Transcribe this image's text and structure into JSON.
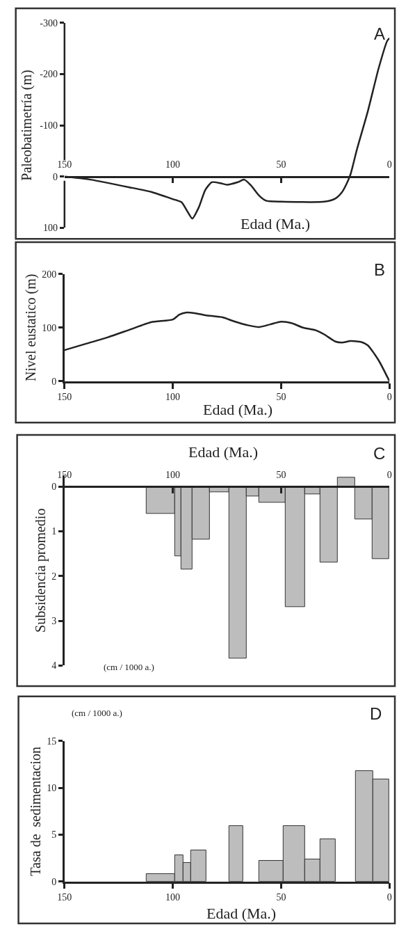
{
  "chart_data": [
    {
      "type": "line",
      "ylabel": "Paleobatimetría (m)",
      "xlabel": "Edad (Ma.)",
      "annotations": [
        "A"
      ],
      "xlim": [
        150,
        0
      ],
      "xticks": [
        150,
        100,
        50,
        0
      ],
      "ylim": [
        100,
        -300
      ],
      "yticks": [
        -300,
        -200,
        -100,
        0,
        100
      ],
      "series": [
        {
          "color": "#222222",
          "x": [
            150,
            143,
            138,
            120,
            110,
            100,
            96,
            93,
            91,
            88,
            85,
            82,
            78,
            75,
            70,
            67,
            64,
            60,
            57,
            50,
            30,
            25,
            22,
            20,
            18,
            15,
            10,
            5,
            1,
            0
          ],
          "values": [
            0,
            3,
            6,
            21,
            30,
            44,
            50,
            70,
            82,
            60,
            26,
            11,
            13,
            16,
            11,
            6,
            17,
            38,
            47,
            49,
            49,
            43,
            31,
            16,
            -4,
            -53,
            -127,
            -211,
            -265,
            -270
          ]
        }
      ]
    },
    {
      "type": "line",
      "ylabel": "Nivel eustatico (m)",
      "xlabel": "Edad (Ma.)",
      "annotations": [
        "B"
      ],
      "xlim": [
        150,
        0
      ],
      "xticks": [
        150,
        100,
        50,
        0
      ],
      "ylim": [
        0,
        200
      ],
      "yticks": [
        0,
        100,
        200
      ],
      "series": [
        {
          "color": "#222222",
          "x": [
            150,
            140,
            130,
            120,
            110,
            100,
            97,
            94,
            90,
            85,
            77,
            72,
            65,
            60,
            55,
            50,
            45,
            40,
            34,
            30,
            25,
            22,
            18,
            13,
            10,
            5,
            0
          ],
          "values": [
            58,
            70,
            82,
            96,
            110,
            115,
            124,
            128,
            127,
            123,
            119,
            112,
            104,
            101,
            106,
            111,
            108,
            100,
            95,
            87,
            74,
            72,
            75,
            73,
            67,
            39,
            0
          ]
        }
      ]
    },
    {
      "type": "histogram",
      "ylabel": "Subsidencia promedio",
      "xlabel": "Edad (Ma.)",
      "annotations": [
        "C",
        "(cm / 1000 a.)"
      ],
      "xlim": [
        150,
        0
      ],
      "xticks": [
        150,
        100,
        50,
        0
      ],
      "ylim": [
        4,
        -0.25
      ],
      "yticks": [
        0,
        1,
        2,
        3,
        4
      ],
      "color": "#bdbdbd",
      "bins": [
        112,
        99,
        96,
        91,
        83,
        74,
        66,
        60,
        48,
        39,
        32,
        24,
        16,
        8,
        0
      ],
      "values": [
        0.6,
        1.55,
        1.85,
        1.18,
        0.13,
        3.85,
        0.22,
        0.36,
        2.7,
        0.17,
        1.7,
        -0.2,
        0.73,
        1.62
      ]
    },
    {
      "type": "histogram",
      "ylabel": "Tasa de  sedimentacion",
      "xlabel": "Edad (Ma.)",
      "annotations": [
        "(cm / 1000 a.)",
        "D"
      ],
      "xlim": [
        150,
        0
      ],
      "xticks": [
        150,
        100,
        50,
        0
      ],
      "ylim": [
        0,
        15
      ],
      "yticks": [
        0,
        5,
        10,
        15
      ],
      "color": "#bdbdbd",
      "bins": [
        112,
        99,
        95,
        91.5,
        84.5,
        74,
        67.5,
        60,
        49,
        39,
        32,
        25,
        15.5,
        7.5,
        0
      ],
      "values": [
        0.8,
        2.8,
        2.0,
        3.3,
        null,
        5.9,
        null,
        2.2,
        5.9,
        2.35,
        4.5,
        null,
        11.8,
        10.9
      ]
    }
  ]
}
